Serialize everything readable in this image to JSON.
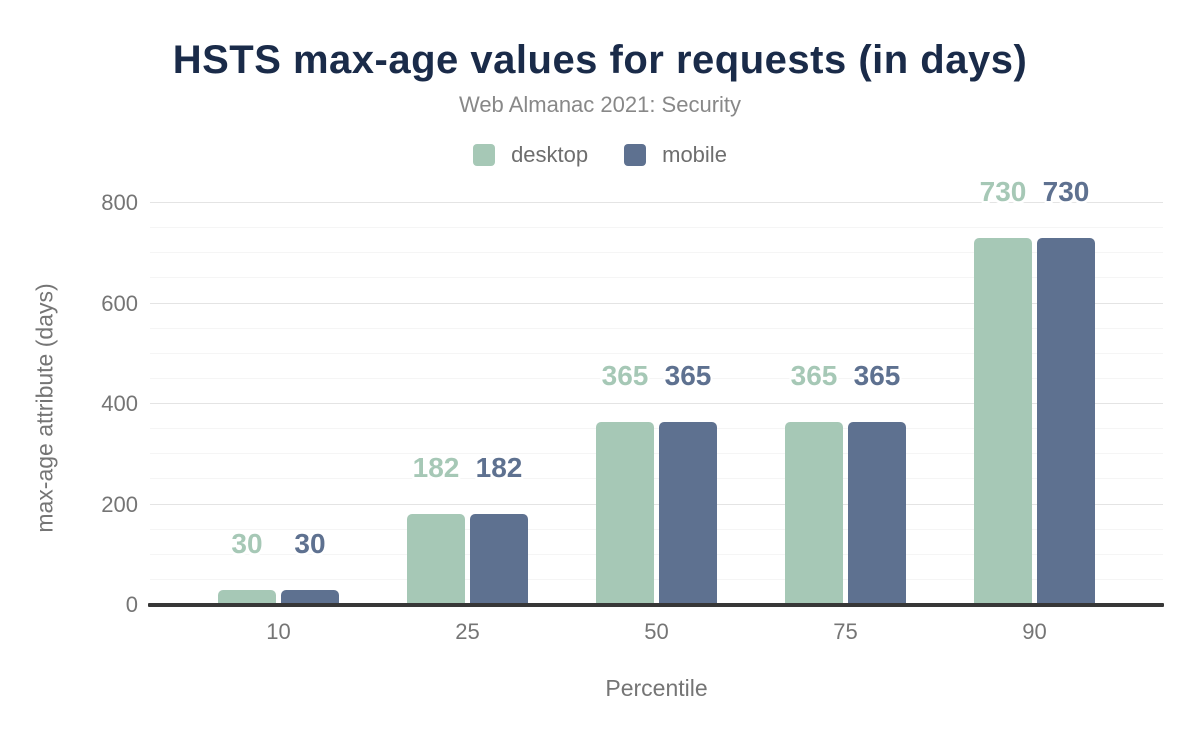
{
  "title": "HSTS max-age values for requests (in days)",
  "subtitle": "Web Almanac 2021: Security",
  "colors": {
    "title": "#1a2b49",
    "subtitle": "#888888",
    "axis_text": "#757575",
    "axis_line": "#373737",
    "grid_major": "#e4e4e4",
    "grid_minor": "#f5f5f5",
    "background": "#ffffff",
    "desktop": "#a6c8b6",
    "mobile": "#5e7190"
  },
  "chart_data": {
    "type": "bar",
    "title": "HSTS max-age values for requests (in days)",
    "subtitle": "Web Almanac 2021: Security",
    "categories": [
      "10",
      "25",
      "50",
      "75",
      "90"
    ],
    "series": [
      {
        "name": "desktop",
        "color": "#a6c8b6",
        "values": [
          30,
          182,
          365,
          365,
          730
        ]
      },
      {
        "name": "mobile",
        "color": "#5e7190",
        "values": [
          30,
          182,
          365,
          365,
          730
        ]
      }
    ],
    "data_labels_shown": true,
    "xlabel": "Percentile",
    "ylabel": "max-age attribute (days)",
    "ylim": [
      0,
      800
    ],
    "yticks": [
      0,
      200,
      400,
      600,
      800
    ],
    "minor_grid_step": 50,
    "major_grid_step": 200,
    "grid": true,
    "legend_position": "top"
  }
}
